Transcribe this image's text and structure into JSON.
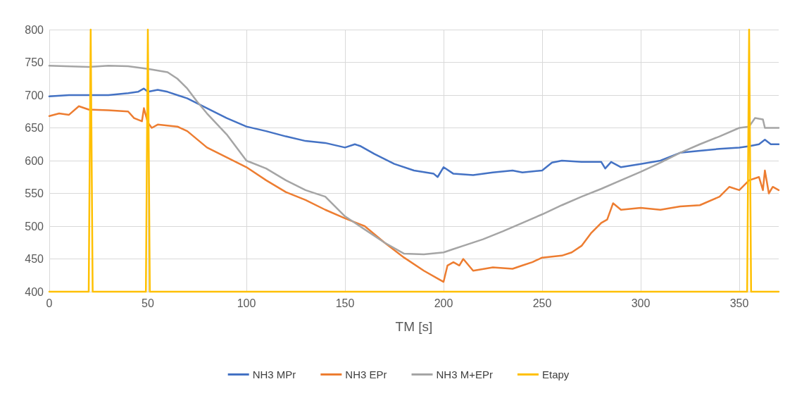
{
  "chart_data": {
    "type": "line",
    "xlabel": "TM [s]",
    "xlim": [
      0,
      370
    ],
    "xticks": [
      0,
      50,
      100,
      150,
      200,
      250,
      300,
      350
    ],
    "ylim": [
      400,
      800
    ],
    "yticks": [
      400,
      450,
      500,
      550,
      600,
      650,
      700,
      750,
      800
    ],
    "grid": true,
    "legend": "bottom",
    "marker": "none",
    "line_style": "solid",
    "series": [
      {
        "name": "NH3 MPr",
        "color": "#4472c4",
        "x": [
          0,
          10,
          20,
          30,
          40,
          45,
          48,
          50,
          55,
          60,
          70,
          80,
          90,
          100,
          110,
          120,
          130,
          140,
          150,
          155,
          158,
          165,
          175,
          185,
          195,
          197,
          200,
          205,
          215,
          225,
          235,
          240,
          250,
          255,
          260,
          270,
          280,
          282,
          285,
          290,
          300,
          310,
          320,
          330,
          340,
          350,
          355,
          360,
          363,
          366,
          370
        ],
        "values": [
          698,
          700,
          700,
          700,
          703,
          705,
          710,
          705,
          708,
          705,
          695,
          680,
          665,
          652,
          645,
          637,
          630,
          627,
          620,
          625,
          622,
          610,
          595,
          585,
          580,
          575,
          590,
          580,
          578,
          582,
          585,
          582,
          585,
          597,
          600,
          598,
          598,
          588,
          598,
          590,
          595,
          600,
          612,
          615,
          618,
          620,
          622,
          625,
          632,
          625,
          625
        ]
      },
      {
        "name": "NH3 EPr",
        "color": "#ed7d31",
        "x": [
          0,
          5,
          10,
          15,
          20,
          30,
          40,
          43,
          47,
          48,
          50,
          52,
          55,
          65,
          70,
          80,
          90,
          100,
          110,
          120,
          130,
          140,
          150,
          160,
          170,
          180,
          190,
          197,
          200,
          202,
          205,
          208,
          210,
          215,
          225,
          235,
          240,
          245,
          250,
          260,
          265,
          270,
          275,
          280,
          283,
          286,
          290,
          300,
          310,
          320,
          330,
          340,
          345,
          350,
          355,
          360,
          362,
          363,
          365,
          367,
          370
        ],
        "values": [
          668,
          672,
          670,
          683,
          678,
          677,
          675,
          665,
          660,
          680,
          658,
          650,
          655,
          652,
          645,
          620,
          605,
          590,
          570,
          552,
          540,
          525,
          512,
          500,
          475,
          452,
          432,
          420,
          415,
          440,
          445,
          440,
          450,
          432,
          437,
          435,
          440,
          445,
          452,
          455,
          460,
          470,
          490,
          505,
          510,
          535,
          525,
          528,
          525,
          530,
          532,
          545,
          560,
          555,
          570,
          575,
          555,
          585,
          550,
          560,
          555
        ]
      },
      {
        "name": "NH3 M+EPr",
        "color": "#a5a5a5",
        "x": [
          0,
          20,
          30,
          40,
          50,
          60,
          65,
          70,
          75,
          80,
          90,
          100,
          110,
          120,
          130,
          140,
          150,
          160,
          170,
          180,
          190,
          200,
          205,
          210,
          220,
          230,
          240,
          250,
          260,
          270,
          280,
          290,
          300,
          310,
          320,
          330,
          340,
          350,
          355,
          358,
          362,
          363,
          370
        ],
        "values": [
          745,
          743,
          745,
          744,
          740,
          735,
          725,
          710,
          690,
          672,
          640,
          600,
          588,
          570,
          555,
          545,
          515,
          495,
          475,
          458,
          457,
          460,
          465,
          470,
          480,
          492,
          505,
          518,
          532,
          545,
          557,
          570,
          583,
          597,
          612,
          625,
          637,
          650,
          652,
          665,
          663,
          650,
          650
        ]
      },
      {
        "name": "Etapy",
        "color": "#ffc000",
        "x": [
          0,
          20,
          21,
          22,
          49,
          50,
          51,
          354,
          355,
          356,
          370
        ],
        "values": [
          400,
          400,
          800,
          400,
          400,
          800,
          400,
          400,
          800,
          400,
          400
        ]
      }
    ]
  }
}
